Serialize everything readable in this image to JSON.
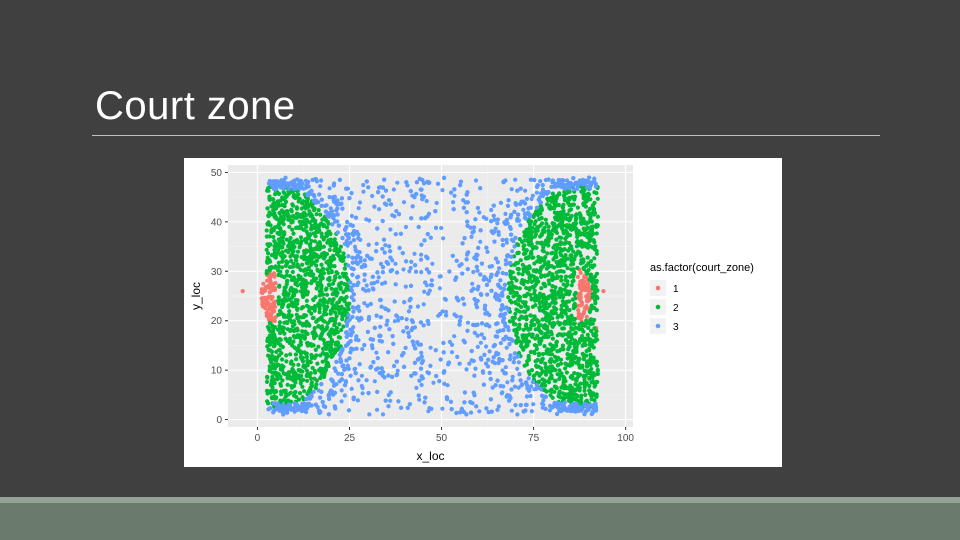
{
  "slide": {
    "title": "Court zone"
  },
  "colors": {
    "background": "#404040",
    "panel": "#ebebeb",
    "zone_1": "#f8766d",
    "zone_2": "#00ba38",
    "zone_3": "#619cff",
    "footer": "#6a7a6c"
  },
  "chart_data": {
    "type": "scatter",
    "xlabel": "x_loc",
    "ylabel": "y_loc",
    "xlim": [
      -8,
      102
    ],
    "ylim": [
      -1.5,
      51.5
    ],
    "xticks": [
      0,
      25,
      50,
      75,
      100
    ],
    "yticks": [
      0,
      10,
      20,
      30,
      40,
      50
    ],
    "grid": true,
    "legend": {
      "title": "as.factor(court_zone)",
      "placement": "right",
      "entries": [
        "1",
        "2",
        "3"
      ]
    },
    "series": [
      {
        "name": "1",
        "color": "#f8766d",
        "regions": [
          {
            "shape": "half-ellipse",
            "center": [
              5,
              25
            ],
            "rx": 4,
            "ry": 5.5,
            "direction": "left"
          },
          {
            "shape": "half-ellipse",
            "center": [
              87,
              25
            ],
            "rx": 4,
            "ry": 5.5,
            "direction": "right"
          }
        ],
        "outliers": [
          [
            -4,
            26
          ],
          [
            94,
            26
          ],
          [
            92,
            18.5
          ]
        ]
      },
      {
        "name": "2",
        "color": "#00ba38",
        "regions": [
          {
            "shape": "band",
            "x_range": [
              2.5,
              24
            ],
            "y_range": [
              2,
              48
            ],
            "arc_center": [
              3,
              25
            ],
            "arc_radius": 22,
            "inner_cutout": "zone_1"
          },
          {
            "shape": "band",
            "x_range": [
              68,
              92
            ],
            "y_range": [
              2,
              48
            ],
            "arc_center": [
              90,
              25
            ],
            "arc_radius": 22,
            "inner_cutout": "zone_1"
          }
        ]
      },
      {
        "name": "3",
        "color": "#619cff",
        "regions": [
          {
            "shape": "rect",
            "x_range": [
              3,
              92
            ],
            "y_range": [
              1,
              49
            ],
            "excludes": "zone_2",
            "density": "dense near zone_2 boundary, sparse in center"
          },
          {
            "shape": "strip",
            "x_range": [
              4,
              14
            ],
            "y_range": [
              1.5,
              3.5
            ]
          },
          {
            "shape": "strip",
            "x_range": [
              4,
              14
            ],
            "y_range": [
              46.5,
              48.5
            ]
          },
          {
            "shape": "strip",
            "x_range": [
              80,
              92
            ],
            "y_range": [
              1.5,
              3.5
            ]
          },
          {
            "shape": "strip",
            "x_range": [
              80,
              92
            ],
            "y_range": [
              46.5,
              48.5
            ]
          }
        ]
      }
    ]
  }
}
